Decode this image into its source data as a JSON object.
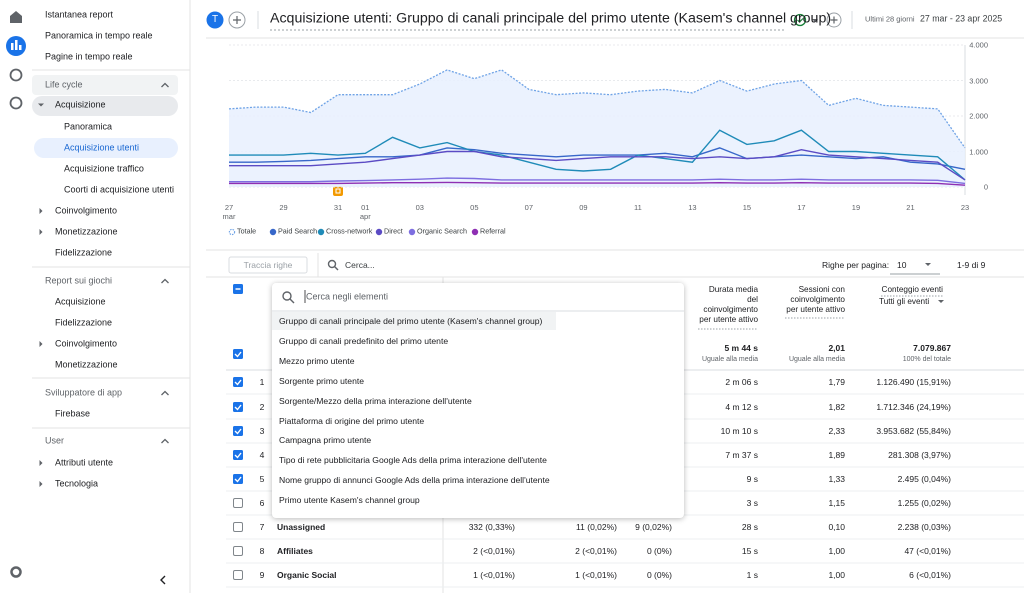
{
  "sidebar": {
    "top": [
      "Istantanea report",
      "Panoramica in tempo reale",
      "Pagine in tempo reale"
    ],
    "sections": [
      {
        "title": "Life cycle",
        "items": [
          "Acquisizione",
          "Panoramica",
          "Acquisizione utenti",
          "Acquisizione traffico",
          "Coorti di acquisizione utenti",
          "Coinvolgimento",
          "Monetizzazione",
          "Fidelizzazione"
        ]
      },
      {
        "title": "Report sui giochi",
        "items": [
          "Acquisizione",
          "Fidelizzazione",
          "Coinvolgimento",
          "Monetizzazione"
        ]
      },
      {
        "title": "Sviluppatore di app",
        "items": [
          "Firebase"
        ]
      },
      {
        "title": "User",
        "items": [
          "Attributi utente",
          "Tecnologia"
        ]
      }
    ]
  },
  "header": {
    "avatar": "T",
    "title": "Acquisizione utenti: Gruppo di canali principale del primo utente (Kasem's channel group)",
    "range_label": "Ultimi 28 giorni",
    "range": "27 mar - 23 apr 2025"
  },
  "chart": {
    "type": "line",
    "categories": [
      "27\nmar",
      null,
      "29",
      null,
      "31",
      "01\napr",
      null,
      "03",
      null,
      "05",
      null,
      "07",
      null,
      "09",
      null,
      "11",
      null,
      "13",
      null,
      "15",
      null,
      "17",
      null,
      "19",
      null,
      "21",
      null,
      "23"
    ],
    "series": [
      {
        "name": "Totale",
        "color": "#6fa3e6",
        "values": [
          2200,
          2250,
          2250,
          2100,
          2600,
          2600,
          2600,
          2900,
          3300,
          3050,
          3300,
          2750,
          2600,
          2650,
          2600,
          2700,
          2750,
          2650,
          3000,
          2700,
          2900,
          3000,
          2300,
          2500,
          2300,
          2250,
          2200,
          1100
        ]
      },
      {
        "name": "Paid Search",
        "color": "#3767c9",
        "values": [
          700,
          700,
          720,
          750,
          800,
          850,
          850,
          900,
          1100,
          1050,
          950,
          900,
          850,
          900,
          900,
          900,
          950,
          850,
          1100,
          800,
          850,
          900,
          850,
          800,
          850,
          700,
          650,
          500
        ]
      },
      {
        "name": "Cross-network",
        "color": "#1f8bb8",
        "values": [
          900,
          900,
          900,
          950,
          900,
          950,
          1400,
          1100,
          1250,
          1000,
          900,
          700,
          500,
          450,
          500,
          900,
          800,
          700,
          1600,
          1200,
          1300,
          1600,
          1000,
          1000,
          950,
          900,
          850,
          200
        ]
      },
      {
        "name": "Direct",
        "color": "#5b4bc4",
        "values": [
          600,
          600,
          600,
          600,
          650,
          700,
          800,
          900,
          1000,
          1000,
          850,
          800,
          750,
          800,
          850,
          850,
          850,
          800,
          850,
          800,
          850,
          1050,
          900,
          850,
          800,
          750,
          700,
          200
        ]
      },
      {
        "name": "Organic Search",
        "color": "#7d6ee0",
        "values": [
          150,
          150,
          150,
          150,
          170,
          180,
          200,
          220,
          250,
          240,
          200,
          200,
          200,
          200,
          200,
          200,
          200,
          200,
          220,
          200,
          200,
          220,
          200,
          200,
          200,
          200,
          190,
          100
        ]
      },
      {
        "name": "Referral",
        "color": "#8e2fb3",
        "values": [
          100,
          100,
          100,
          100,
          100,
          110,
          120,
          120,
          130,
          120,
          110,
          110,
          110,
          110,
          110,
          110,
          110,
          110,
          120,
          110,
          110,
          120,
          110,
          110,
          110,
          110,
          100,
          50
        ]
      }
    ],
    "ylim": [
      0,
      4000
    ],
    "yticks": [
      0,
      {
        "value": 1000,
        "label": "1.000"
      },
      {
        "value": 2000,
        "label": "2.000"
      },
      {
        "value": 3000,
        "label": "3.000"
      },
      {
        "value": 4000,
        "label": "4.000"
      }
    ],
    "grid": true
  },
  "toolbar": {
    "track_rows": "Traccia righe",
    "search": "Cerca...",
    "rows_per_page_label": "Righe per pagina:",
    "rows_per_page": "10",
    "pagination": "1-9 di 9"
  },
  "table": {
    "headers": {
      "duration": "Durata media\ndel\ncoinvolgimento\nper utente attivo",
      "sessions": "Sessioni con\ncoinvolgimento\nper utente attivo",
      "events": "Conteggio eventi",
      "event_filter": "Tutti gli eventi"
    },
    "totals": {
      "duration": "5 m 44 s",
      "duration_note": "Uguale alla media",
      "sessions": "2,01",
      "sessions_note": "Uguale alla media",
      "events": "7.079.867",
      "events_note": "100% del totale"
    },
    "rows": [
      {
        "index": "1",
        "selected": true,
        "duration": "2 m 06 s",
        "sessions": "1,79",
        "events": "1.126.490 (15,91%)"
      },
      {
        "index": "2",
        "selected": true,
        "duration": "4 m 12 s",
        "sessions": "1,82",
        "events": "1.712.346 (24,19%)"
      },
      {
        "index": "3",
        "selected": true,
        "duration": "10 m 10 s",
        "sessions": "2,33",
        "events": "3.953.682 (55,84%)"
      },
      {
        "index": "4",
        "selected": true,
        "duration": "7 m 37 s",
        "sessions": "1,89",
        "events": "281.308 (3,97%)"
      },
      {
        "index": "5",
        "selected": true,
        "duration": "9 s",
        "sessions": "1,33",
        "events": "2.495 (0,04%)"
      },
      {
        "index": "6",
        "selected": false,
        "duration": "3 s",
        "sessions": "1,15",
        "events": "1.255 (0,02%)"
      },
      {
        "index": "7",
        "selected": false,
        "name": "Unassigned",
        "col1": "332 (0,33%)",
        "col2": "11 (0,02%)",
        "col3": "9 (0,02%)",
        "duration": "28 s",
        "sessions": "0,10",
        "events": "2.238 (0,03%)"
      },
      {
        "index": "8",
        "selected": false,
        "name": "Affiliates",
        "col1": "2 (<0,01%)",
        "col2": "2 (<0,01%)",
        "col3": "0 (0%)",
        "duration": "15 s",
        "sessions": "1,00",
        "events": "47 (<0,01%)"
      },
      {
        "index": "9",
        "selected": false,
        "name": "Organic Social",
        "col1": "1 (<0,01%)",
        "col2": "1 (<0,01%)",
        "col3": "0 (0%)",
        "duration": "1 s",
        "sessions": "1,00",
        "events": "6 (<0,01%)"
      }
    ]
  },
  "dropdown": {
    "search": "Cerca negli elementi",
    "options": [
      "Gruppo di canali principale del primo utente (Kasem's channel group)",
      "Gruppo di canali predefinito del primo utente",
      "Mezzo primo utente",
      "Sorgente primo utente",
      "Sorgente/Mezzo della prima interazione dell'utente",
      "Piattaforma di origine del primo utente",
      "Campagna primo utente",
      "Tipo di rete pubblicitaria Google Ads della prima interazione dell'utente",
      "Nome gruppo di annunci Google Ads della prima interazione dell'utente",
      "Primo utente Kasem's channel group"
    ]
  }
}
